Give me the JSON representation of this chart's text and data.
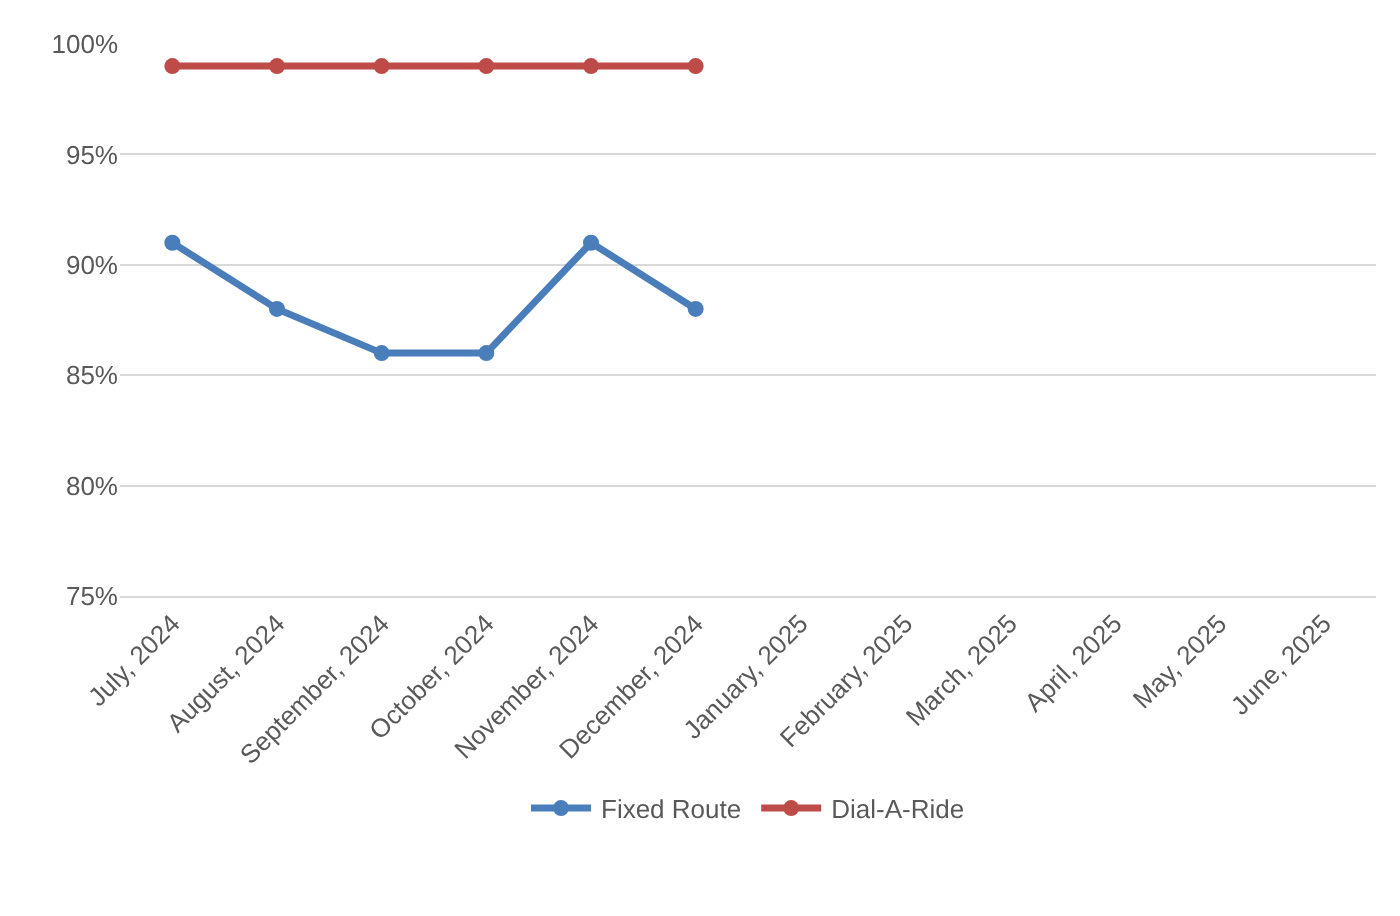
{
  "chart_data": {
    "type": "line",
    "categories": [
      "July, 2024",
      "August, 2024",
      "September, 2024",
      "October, 2024",
      "November, 2024",
      "December, 2024",
      "January, 2025",
      "February, 2025",
      "March, 2025",
      "April, 2025",
      "May, 2025",
      "June, 2025"
    ],
    "series": [
      {
        "name": "Fixed Route",
        "color": "#4a7ebb",
        "values": [
          91,
          88,
          86,
          86,
          91,
          88,
          null,
          null,
          null,
          null,
          null,
          null
        ]
      },
      {
        "name": "Dial-A-Ride",
        "color": "#be4b48",
        "values": [
          99,
          99,
          99,
          99,
          99,
          99,
          null,
          null,
          null,
          null,
          null,
          null
        ]
      }
    ],
    "ylim": [
      75,
      100
    ],
    "yticks": [
      {
        "value": 75,
        "label": "75%"
      },
      {
        "value": 80,
        "label": "80%"
      },
      {
        "value": 85,
        "label": "85%"
      },
      {
        "value": 90,
        "label": "90%"
      },
      {
        "value": 95,
        "label": "95%"
      },
      {
        "value": 100,
        "label": "100%"
      }
    ],
    "grid": "y",
    "legend": "bottom",
    "marker": "circle",
    "line_style": "solid"
  }
}
